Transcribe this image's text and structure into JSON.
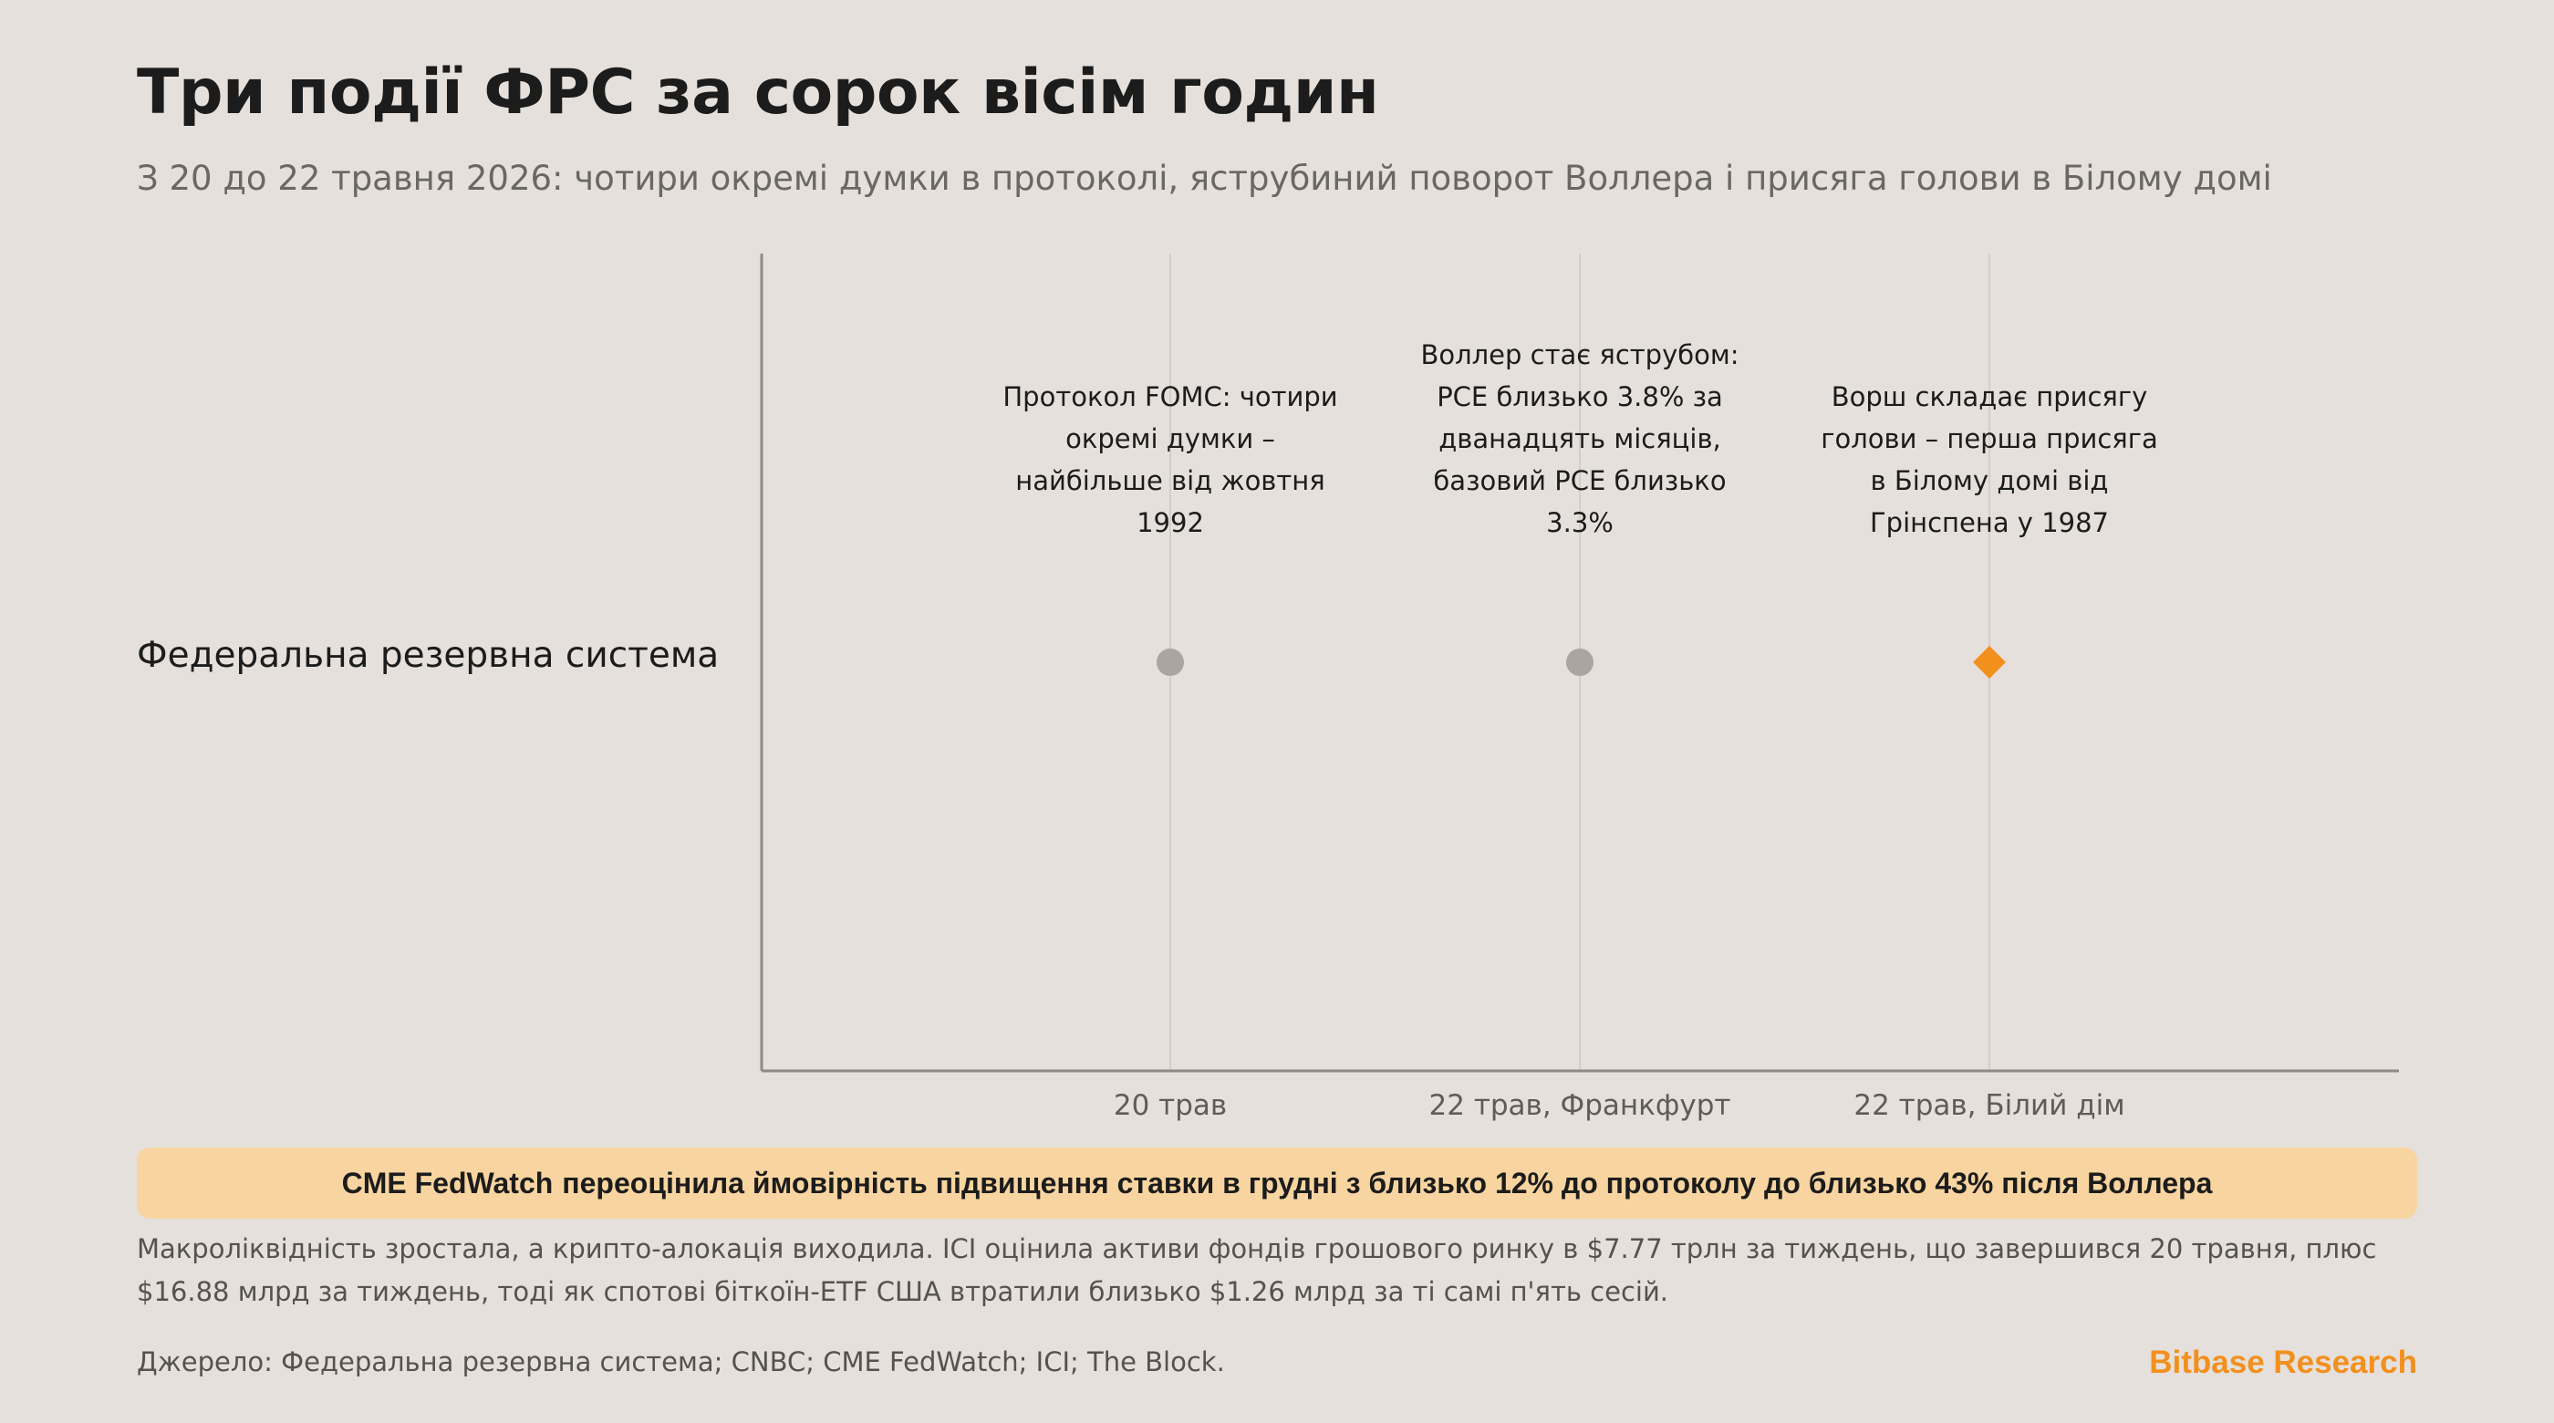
{
  "header": {
    "title": "Три події ФРС за сорок вісім годин",
    "subtitle": "З 20 до 22 травня 2026: чотири окремі думки в протоколі, яструбиний поворот Воллера і присяга голови в Білому домі"
  },
  "chart_data": {
    "type": "scatter",
    "title": "Три події ФРС за сорок вісім годин",
    "row_labels": [
      "Федеральна резервна система"
    ],
    "categories": [
      "20 трав",
      "22 трав, Франкфурт",
      "22 трав, Білий дім"
    ],
    "events": [
      {
        "x": "20 трав",
        "row": "Федеральна резервна система",
        "marker": "circle",
        "color": "#aaa59f",
        "annotation": [
          "Протокол FOMC: чотири",
          "окремі думки –",
          "найбільше від жовтня",
          "1992"
        ]
      },
      {
        "x": "22 трав, Франкфурт",
        "row": "Федеральна резервна система",
        "marker": "circle",
        "color": "#aaa59f",
        "annotation": [
          "Воллер стає яструбом:",
          "PCE близько 3.8% за",
          "дванадцять місяців,",
          "базовий PCE близько",
          "3.3%"
        ]
      },
      {
        "x": "22 трав, Білий дім",
        "row": "Федеральна резервна система",
        "marker": "diamond",
        "color": "#f2901e",
        "annotation": [
          "Ворш складає присягу",
          "голови – перша присяга",
          "в Білому домі від",
          "Грінспена у 1987"
        ]
      }
    ],
    "grid": "vertical",
    "axis_color": "#8e8a86",
    "grid_color": "#d3cec8"
  },
  "banner": {
    "brand": "CME FedWatch",
    "text": "переоцінила ймовірність підвищення ставки в грудні з близько 12% до протоколу до близько 43% після Воллера"
  },
  "notes": "Макроліквідність зростала, а крипто-алокація виходила. ICI оцінила активи фондів грошового ринку в $7.77 трлн за тиждень, що завершився 20 травня, плюс $16.88 млрд за тиждень, тоді як спотові біткоїн-ETF США втратили близько $1.26 млрд за ті самі п'ять сесій.",
  "sources": "Джерело: Федеральна резервна система; CNBC; CME FedWatch; ICI; The Block.",
  "brandmark": "Bitbase Research",
  "colors": {
    "background": "#e5e0db",
    "accent": "#f2901e",
    "banner": "#f8d5a0"
  }
}
